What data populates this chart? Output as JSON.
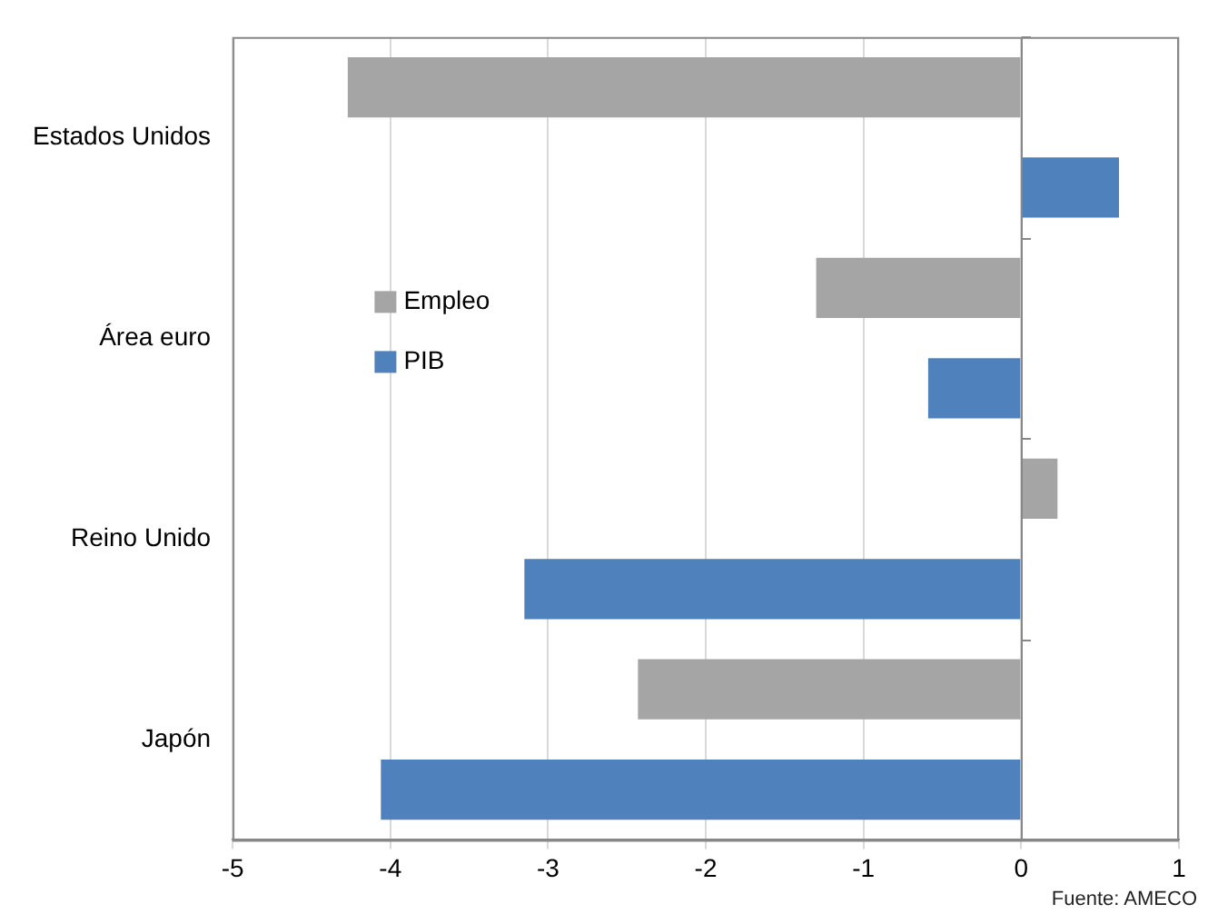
{
  "chart_data": {
    "type": "bar",
    "orientation": "horizontal",
    "categories": [
      "Estados Unidos",
      "Área euro",
      "Reino Unido",
      "Japón"
    ],
    "series": [
      {
        "name": "Empleo",
        "color": "#a5a5a5",
        "values": [
          -4.27,
          -1.3,
          0.23,
          -2.43
        ]
      },
      {
        "name": "PIB",
        "color": "#4f81bd",
        "values": [
          0.62,
          -0.59,
          -3.15,
          -4.06
        ]
      }
    ],
    "xlim": [
      -5,
      1
    ],
    "xticks": [
      -5,
      -4,
      -3,
      -2,
      -1,
      0,
      1
    ],
    "grid": "x",
    "legend": "left",
    "annotations": [
      "Fuente: AMECO"
    ]
  }
}
